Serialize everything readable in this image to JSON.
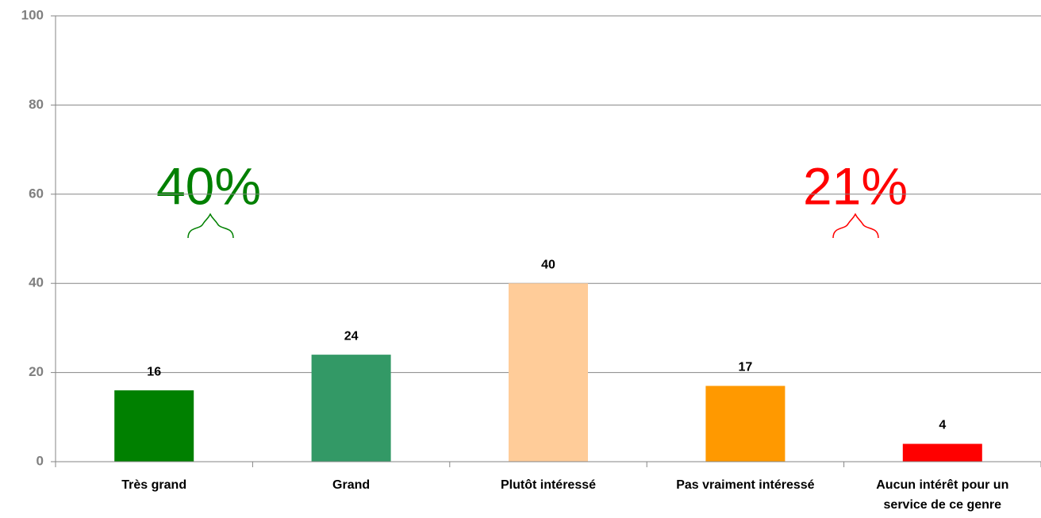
{
  "chart_data": {
    "type": "bar",
    "categories": [
      "Très grand",
      "Grand",
      "Plutôt intéressé",
      "Pas vraiment intéressé",
      "Aucun intérêt pour un\nservice de ce  genre"
    ],
    "values": [
      16,
      24,
      40,
      17,
      4
    ],
    "colors": [
      "#008000",
      "#339966",
      "#ffcc99",
      "#ff9900",
      "#ff0000"
    ],
    "ylim": [
      0,
      100
    ],
    "yticks": [
      0,
      20,
      40,
      60,
      80,
      100
    ],
    "grid": true,
    "annotations": [
      {
        "text": "40%",
        "color": "#008000"
      },
      {
        "text": "21%",
        "color": "#ff0000"
      }
    ]
  }
}
